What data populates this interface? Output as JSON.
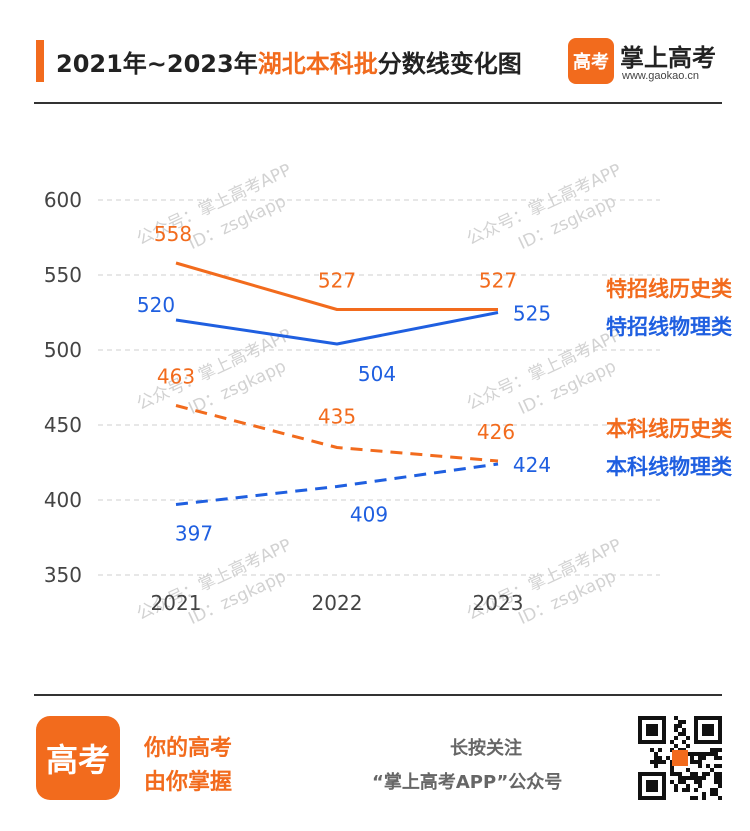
{
  "header": {
    "title_prefix": "2021年~2023年",
    "title_highlight": "湖北本科批",
    "title_suffix": "分数线变化图",
    "brand_logo_text": "高考",
    "brand_name": "掌上高考",
    "brand_url": "www.gaokao.cn"
  },
  "watermark": {
    "line1": "公众号：掌上高考APP",
    "line2": "ID：zsgkapp"
  },
  "chart_data": {
    "type": "line",
    "categories": [
      "2021",
      "2022",
      "2023"
    ],
    "ylim": [
      350,
      600
    ],
    "yticks": [
      350,
      400,
      450,
      500,
      550,
      600
    ],
    "grid": true,
    "legend_placement": "right",
    "series": [
      {
        "name": "特招线历史类",
        "values": [
          558,
          527,
          527
        ],
        "color": "#f26b1d",
        "dashed": false
      },
      {
        "name": "特招线物理类",
        "values": [
          520,
          504,
          525
        ],
        "color": "#1f5fe0",
        "dashed": false
      },
      {
        "name": "本科线历史类",
        "values": [
          463,
          435,
          426
        ],
        "color": "#f26b1d",
        "dashed": true
      },
      {
        "name": "本科线物理类",
        "values": [
          397,
          409,
          424
        ],
        "color": "#1f5fe0",
        "dashed": true
      }
    ]
  },
  "footer": {
    "logo_text": "高考",
    "slogan_line1": "你的高考",
    "slogan_line2": "由你掌握",
    "follow_line1": "长按关注",
    "follow_line2": "“掌上高考APP”公众号"
  }
}
